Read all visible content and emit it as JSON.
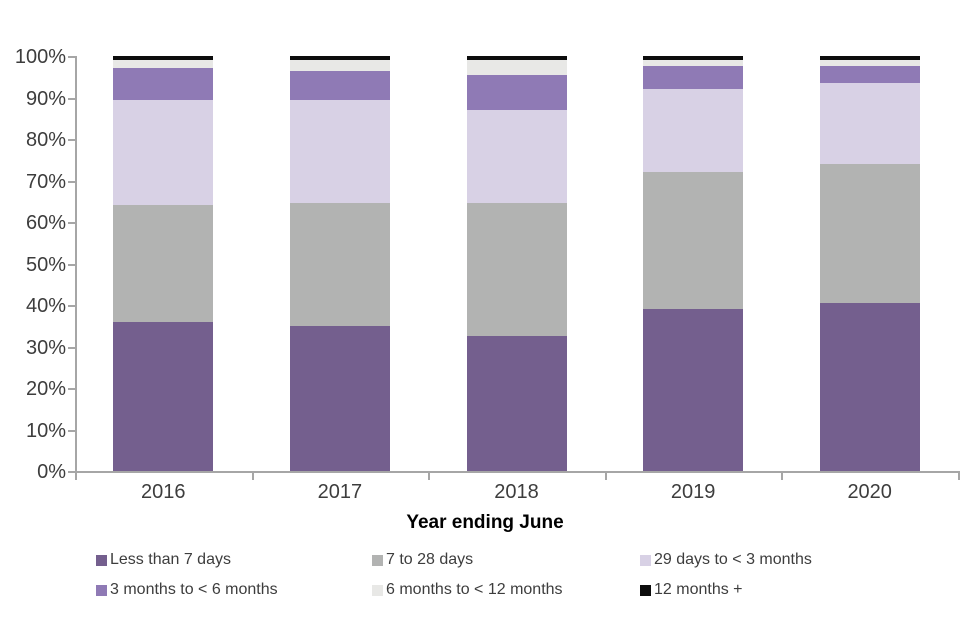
{
  "chart_data": {
    "type": "bar",
    "stacked": true,
    "title": "",
    "xlabel": "Year ending June",
    "ylabel": "",
    "categories": [
      "2016",
      "2017",
      "2018",
      "2019",
      "2020"
    ],
    "y_ticks": [
      "0%",
      "10%",
      "20%",
      "30%",
      "40%",
      "50%",
      "60%",
      "70%",
      "80%",
      "90%",
      "100%"
    ],
    "ylim": [
      0,
      100
    ],
    "grid": false,
    "legend_position": "bottom",
    "axis_color": "#a6a6a6",
    "tick_label_color": "#3d3d3d",
    "xlabel_color": "#000000",
    "series": [
      {
        "name": "Less than 7 days",
        "color": "#745f8e",
        "values": [
          36,
          35,
          32.5,
          39,
          40.5
        ]
      },
      {
        "name": "7 to 28 days",
        "color": "#b2b3b2",
        "values": [
          28,
          29.5,
          32,
          33,
          33.5
        ]
      },
      {
        "name": "29 days to < 3 months",
        "color": "#d8d1e5",
        "values": [
          25.5,
          25,
          22.5,
          20,
          19.5
        ]
      },
      {
        "name": "3 months to < 6 months",
        "color": "#8f7ab5",
        "values": [
          7.5,
          7,
          8.5,
          5.5,
          4
        ]
      },
      {
        "name": "6 months to < 12 months",
        "color": "#e8e8e6",
        "values": [
          2,
          2.5,
          3.5,
          1.5,
          1.5
        ]
      },
      {
        "name": "12 months +",
        "color": "#0d0d0d",
        "values": [
          1,
          1,
          1,
          1,
          1
        ]
      }
    ]
  }
}
